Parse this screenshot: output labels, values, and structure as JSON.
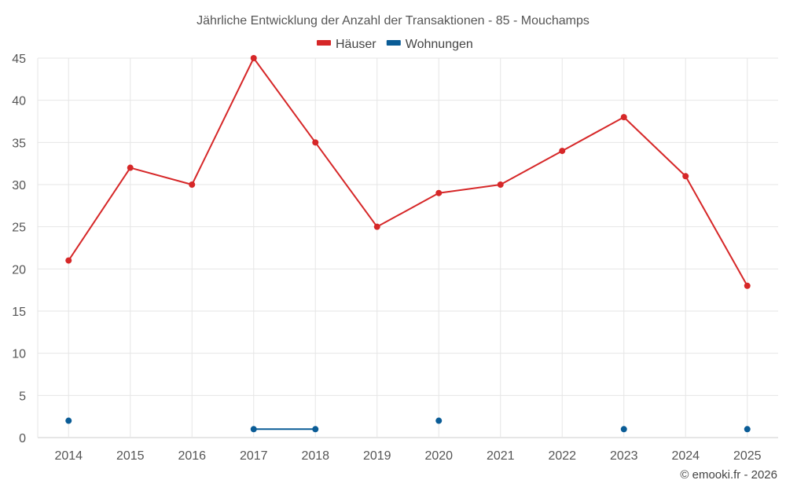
{
  "chart_data": {
    "type": "line",
    "title": "Jährliche Entwicklung der Anzahl der Transaktionen - 85 - Mouchamps",
    "categories": [
      "2014",
      "2015",
      "2016",
      "2017",
      "2018",
      "2019",
      "2020",
      "2021",
      "2022",
      "2023",
      "2024",
      "2025"
    ],
    "series": [
      {
        "name": "Häuser",
        "color": "#d62728",
        "values": [
          21,
          32,
          30,
          45,
          35,
          25,
          29,
          30,
          34,
          38,
          31,
          18
        ]
      },
      {
        "name": "Wohnungen",
        "color": "#0a5c96",
        "values": [
          2,
          null,
          null,
          1,
          1,
          null,
          2,
          null,
          null,
          1,
          null,
          1
        ]
      }
    ],
    "ylim": [
      0,
      45
    ],
    "yticks": [
      0,
      5,
      10,
      15,
      20,
      25,
      30,
      35,
      40,
      45
    ],
    "grid": true,
    "legend_position": "top-center",
    "xlabel": "",
    "ylabel": ""
  },
  "credit": "© emooki.fr - 2026"
}
